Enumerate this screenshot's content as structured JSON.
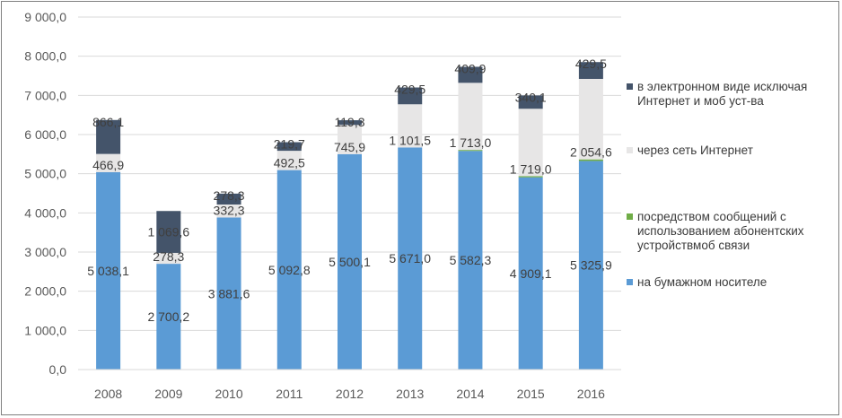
{
  "chart_data": {
    "type": "bar",
    "stacked": true,
    "categories": [
      "2008",
      "2009",
      "2010",
      "2011",
      "2012",
      "2013",
      "2014",
      "2015",
      "2016"
    ],
    "ylim": [
      0,
      9000
    ],
    "yticks": [
      0,
      1000,
      2000,
      3000,
      4000,
      5000,
      6000,
      7000,
      8000,
      9000
    ],
    "ytick_labels": [
      "0,0",
      "1 000,0",
      "2 000,0",
      "3 000,0",
      "4 000,0",
      "5 000,0",
      "6 000,0",
      "7 000,0",
      "8 000,0",
      "9 000,0"
    ],
    "grid": true,
    "legend_position": "right",
    "series": [
      {
        "name": "на бумажном носителе",
        "color": "#5b9bd5",
        "values": [
          5038.1,
          2700.2,
          3881.6,
          5092.8,
          5500.1,
          5671.0,
          5582.3,
          4909.1,
          5325.9
        ],
        "labels": [
          "5 038,1",
          "2 700,2",
          "3 881,6",
          "5 092,8",
          "5 500,1",
          "5 671,0",
          "5 582,3",
          "4 909,1",
          "5 325,9"
        ]
      },
      {
        "name": "посредством сообщений с использованием абонентских устройствмоб связи",
        "color": "#70ad47",
        "values": [
          0,
          0,
          0,
          0,
          0,
          0,
          25,
          30,
          40
        ],
        "labels": [
          "",
          "",
          "",
          "",
          "",
          "",
          "",
          "",
          ""
        ]
      },
      {
        "name": "через сеть Интернет",
        "color": "#e7e6e6",
        "values": [
          466.9,
          278.3,
          332.3,
          492.5,
          745.9,
          1101.5,
          1713.0,
          1719.0,
          2054.6
        ],
        "labels": [
          "466,9",
          "278,3",
          "332,3",
          "492,5",
          "745,9",
          "1 101,5",
          "1 713,0",
          "1 719,0",
          "2 054,6"
        ]
      },
      {
        "name": "в электронном виде исключая Интернет и моб уст-ва",
        "color": "#44546a",
        "values": [
          866.1,
          1069.6,
          278.3,
          219.7,
          119.3,
          429.5,
          409.9,
          340.1,
          429.5
        ],
        "labels": [
          "866,1",
          "1 069,6",
          "278,3",
          "219,7",
          "119,3",
          "429,5",
          "409,9",
          "340,1",
          "429,5"
        ]
      }
    ]
  },
  "legend": {
    "items": [
      {
        "label": "в электронном виде исключая\nИнтернет и моб уст-ва",
        "color": "#44546a"
      },
      {
        "label": "через сеть Интернет",
        "color": "#e7e6e6"
      },
      {
        "label": "посредством сообщений с\nиспользованием абонентских\nустройствмоб связи",
        "color": "#70ad47"
      },
      {
        "label": "на бумажном носителе",
        "color": "#5b9bd5"
      }
    ]
  }
}
